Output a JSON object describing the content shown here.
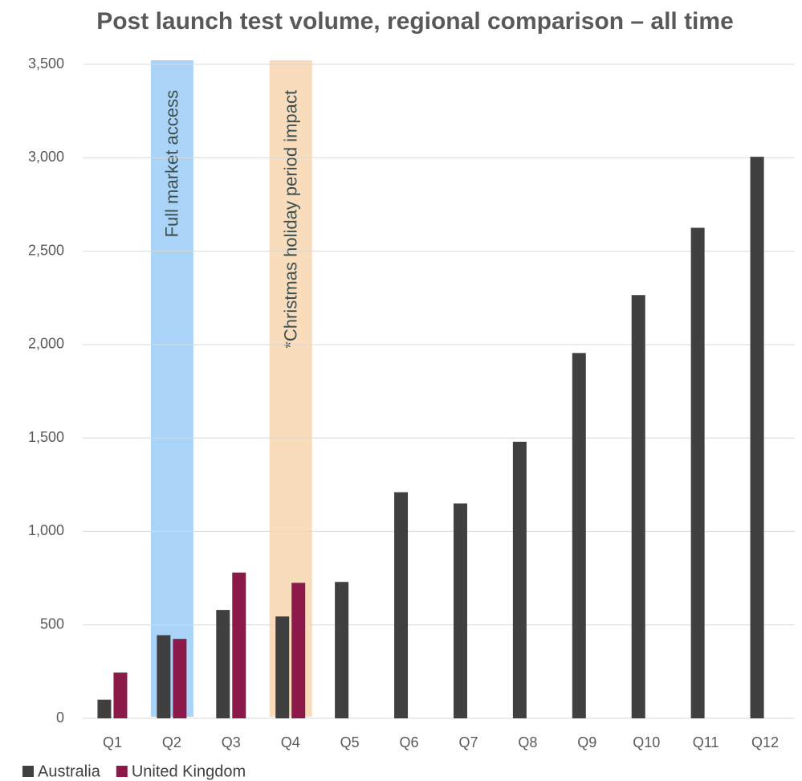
{
  "chart_data": {
    "type": "bar",
    "title": "Post launch test volume, regional comparison – all time",
    "categories": [
      "Q1",
      "Q2",
      "Q3",
      "Q4",
      "Q5",
      "Q6",
      "Q7",
      "Q8",
      "Q9",
      "Q10",
      "Q11",
      "Q12"
    ],
    "series": [
      {
        "name": "Australia",
        "color": "#404040",
        "values": [
          100,
          445,
          580,
          545,
          730,
          1210,
          1150,
          1480,
          1955,
          2265,
          2625,
          3005
        ]
      },
      {
        "name": "United Kingdom",
        "color": "#8b1a4a",
        "values": [
          245,
          425,
          780,
          725,
          null,
          null,
          null,
          null,
          null,
          null,
          null,
          null
        ]
      }
    ],
    "highlights": [
      {
        "category": "Q2",
        "label": "Full market access",
        "color": "#a9d4f8"
      },
      {
        "category": "Q4",
        "label": "*Christmas holiday period impact",
        "color": "#f8dcbc"
      }
    ],
    "ylim": [
      0,
      3500
    ],
    "yticks": [
      0,
      500,
      {
        "value": 1000,
        "label": "1,000"
      },
      {
        "value": 1500,
        "label": "1,500"
      },
      {
        "value": 2000,
        "label": "2,000"
      },
      {
        "value": 2500,
        "label": "2,500"
      },
      {
        "value": 3000,
        "label": "3,000"
      },
      {
        "value": 3500,
        "label": "3,500"
      }
    ],
    "grid": true,
    "legend": "bottom-left"
  }
}
